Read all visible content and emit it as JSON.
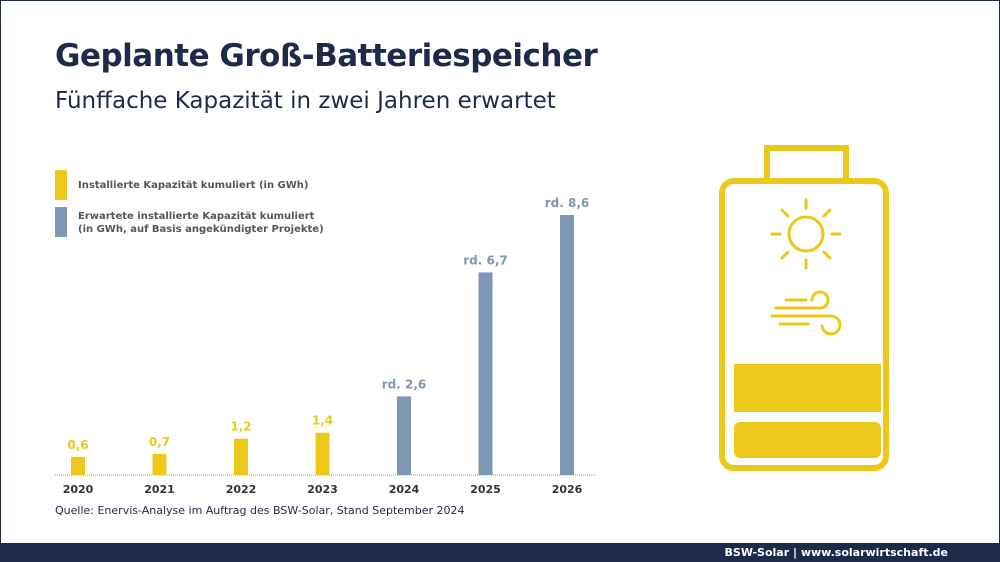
{
  "title": "Geplante Groß-Batteriespeicher",
  "subtitle": "Fünffache Kapazität in zwei Jahren erwartet",
  "colors": {
    "installed": "#ebc81a",
    "expected": "#7d97b4",
    "navy": "#1e2a4a"
  },
  "chart_data": {
    "type": "bar",
    "categories": [
      "2020",
      "2021",
      "2022",
      "2023",
      "2024",
      "2025",
      "2026"
    ],
    "values": [
      0.6,
      0.7,
      1.2,
      1.4,
      2.6,
      6.7,
      8.6
    ],
    "data_labels": [
      "0,6",
      "0,7",
      "1,2",
      "1,4",
      "rd. 2,6",
      "rd. 6,7",
      "rd. 8,6"
    ],
    "series_by_bar": [
      "installed",
      "installed",
      "installed",
      "installed",
      "expected",
      "expected",
      "expected"
    ],
    "legend": [
      {
        "name": "Installierte Kapazität kumuliert (in GWh)",
        "key": "installed"
      },
      {
        "name": "Erwartete installierte Kapazität kumuliert",
        "name2": "(in GWh, auf Basis angekündigter Projekte)",
        "key": "expected"
      }
    ],
    "legend_placement": "top-left",
    "grid": false,
    "ylim": [
      0,
      8.6
    ]
  },
  "source": "Quelle: Enervis-Analyse im Auftrag des BSW-Solar, Stand September 2024",
  "footer": "BSW-Solar | www.solarwirtschaft.de",
  "icons": [
    "battery-icon",
    "sun-icon",
    "wind-icon"
  ]
}
